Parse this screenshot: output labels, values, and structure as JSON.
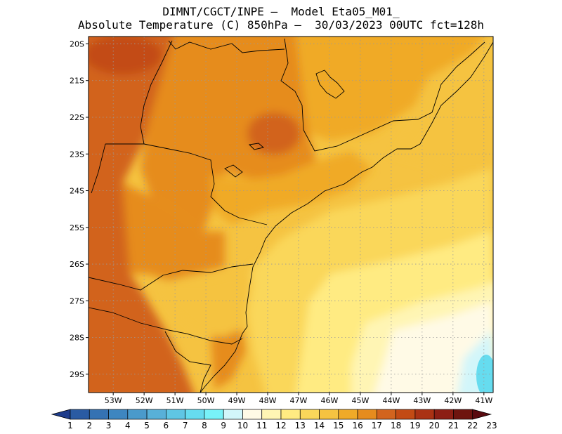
{
  "title": {
    "line1": "DIMNT/CGCT/INPE –  Model Eta05_M01_",
    "line2": "Absolute Temperature (C) 850hPa –  30/03/2023 00UTC fct=128h"
  },
  "map": {
    "lat_labels": [
      "20S",
      "21S",
      "22S",
      "23S",
      "24S",
      "25S",
      "26S",
      "27S",
      "28S",
      "29S"
    ],
    "lon_labels": [
      "53W",
      "52W",
      "51W",
      "50W",
      "49W",
      "48W",
      "47W",
      "46W",
      "45W",
      "44W",
      "43W",
      "42W",
      "41W"
    ],
    "lat_range": [
      -29.5,
      -19.8
    ],
    "lon_range": [
      -53.8,
      -40.7
    ]
  },
  "colorbar": {
    "labels": [
      "1",
      "2",
      "3",
      "4",
      "5",
      "6",
      "7",
      "8",
      "9",
      "10",
      "11",
      "12",
      "13",
      "14",
      "15",
      "16",
      "17",
      "18",
      "19",
      "20",
      "21",
      "22",
      "23"
    ],
    "colors": [
      "#1e3c8c",
      "#2a5ba3",
      "#3572b3",
      "#3e86c0",
      "#4a9acb",
      "#58b0d8",
      "#5fc6e4",
      "#66dcef",
      "#78f2f8",
      "#d2f6fa",
      "#fffae6",
      "#fff5b4",
      "#ffeb82",
      "#fad75a",
      "#f5c341",
      "#f0aa28",
      "#e68c1e",
      "#d2641e",
      "#c34b14",
      "#aa3214",
      "#8c1e14",
      "#6e140f",
      "#5a0a0f"
    ]
  }
}
